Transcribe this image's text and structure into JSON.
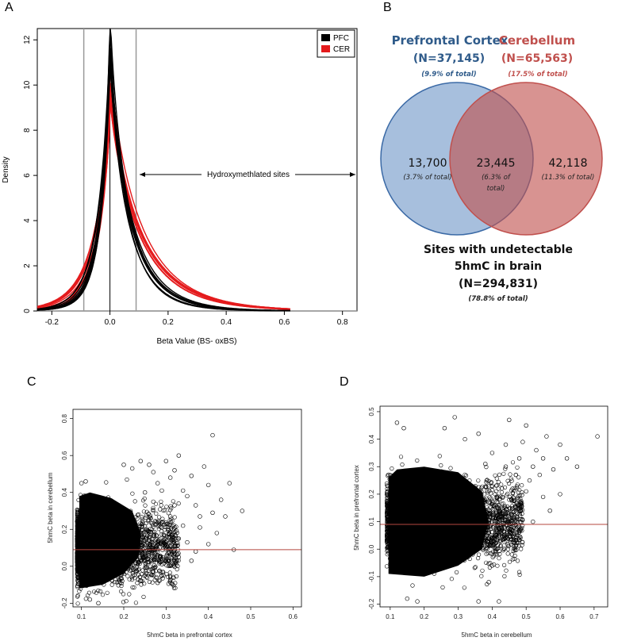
{
  "panels": {
    "a": "A",
    "b": "B",
    "c": "C",
    "d": "D"
  },
  "chart_data": [
    {
      "id": "A",
      "type": "line",
      "xlabel": "Beta Value (BS- oxBS)",
      "ylabel": "Density",
      "xlim": [
        -0.25,
        0.85
      ],
      "ylim": [
        0,
        12.5
      ],
      "x_ticks": [
        "-0.2",
        "0.0",
        "0.2",
        "0.4",
        "0.6",
        "0.8"
      ],
      "y_ticks": [
        "0",
        "2",
        "4",
        "6",
        "8",
        "10",
        "12"
      ],
      "legend": {
        "position": "top-right",
        "entries": [
          {
            "label": "PFC",
            "color": "#000000"
          },
          {
            "label": "CER",
            "color": "#e41a1c"
          }
        ]
      },
      "threshold_lines": [
        -0.09,
        0.09
      ],
      "annotation": "Hydroxymethlated sites",
      "series": [
        {
          "name": "PFC",
          "color": "#000000",
          "peak": 12.2,
          "left_width": 0.035,
          "right_width": 0.06
        },
        {
          "name": "CER",
          "color": "#e41a1c",
          "peak": 9.2,
          "left_width": 0.045,
          "right_width": 0.09
        }
      ]
    },
    {
      "id": "B",
      "type": "venn",
      "sets": [
        {
          "title": "Prefrontal Cortex",
          "count": "(N=37,145)",
          "pct": "(9.9% of total)",
          "color": "#2f5b8a"
        },
        {
          "title": "Cerebellum",
          "count": "(N=65,563)",
          "pct": "(17.5% of total)",
          "color": "#c0504d"
        }
      ],
      "regions": [
        {
          "value": "13,700",
          "note": "(3.7% of total)"
        },
        {
          "value": "23,445",
          "note": "(6.3% of",
          "note2": "total)"
        },
        {
          "value": "42,118",
          "note": "(11.3% of total)"
        }
      ],
      "outside_line1": "Sites with undetectable",
      "outside_line2": "5hmC in brain",
      "outside_count": "(N=294,831)",
      "outside_pct": "(78.8% of total)"
    },
    {
      "id": "C",
      "type": "scatter",
      "xlabel": "5hmC beta in prefrontal cortex",
      "ylabel": "5hmC beta in cerebellum",
      "xlim": [
        0.08,
        0.62
      ],
      "ylim": [
        -0.22,
        0.85
      ],
      "x_ticks": [
        "0.1",
        "0.2",
        "0.3",
        "0.4",
        "0.5",
        "0.6"
      ],
      "y_ticks": [
        "-0.2",
        "0.0",
        "0.2",
        "0.4",
        "0.6",
        "0.8"
      ],
      "threshold": 0.09,
      "points": [
        [
          0.41,
          0.71
        ],
        [
          0.48,
          0.3
        ],
        [
          0.46,
          0.09
        ],
        [
          0.44,
          0.27
        ],
        [
          0.4,
          0.44
        ],
        [
          0.39,
          0.54
        ],
        [
          0.36,
          0.49
        ],
        [
          0.35,
          0.38
        ],
        [
          0.37,
          0.33
        ],
        [
          0.33,
          0.6
        ],
        [
          0.32,
          0.52
        ],
        [
          0.31,
          0.48
        ],
        [
          0.3,
          0.57
        ],
        [
          0.29,
          0.41
        ],
        [
          0.28,
          0.45
        ],
        [
          0.27,
          0.51
        ],
        [
          0.34,
          0.22
        ],
        [
          0.35,
          0.13
        ],
        [
          0.38,
          0.21
        ],
        [
          0.42,
          0.18
        ],
        [
          0.43,
          0.36
        ],
        [
          0.3,
          0.03
        ],
        [
          0.29,
          -0.05
        ],
        [
          0.28,
          -0.09
        ],
        [
          0.26,
          0.55
        ],
        [
          0.24,
          0.57
        ],
        [
          0.22,
          0.53
        ],
        [
          0.2,
          0.55
        ],
        [
          0.31,
          0.27
        ],
        [
          0.33,
          0.15
        ],
        [
          0.4,
          0.12
        ],
        [
          0.45,
          0.45
        ],
        [
          0.36,
          0.03
        ],
        [
          0.12,
          -0.18
        ],
        [
          0.14,
          -0.2
        ],
        [
          0.11,
          0.46
        ],
        [
          0.1,
          0.45
        ],
        [
          0.25,
          0.4
        ],
        [
          0.27,
          0.35
        ],
        [
          0.32,
          0.33
        ],
        [
          0.34,
          0.41
        ],
        [
          0.38,
          0.27
        ],
        [
          0.41,
          0.29
        ],
        [
          0.37,
          0.08
        ],
        [
          0.33,
          0.05
        ]
      ]
    },
    {
      "id": "D",
      "type": "scatter",
      "xlabel": "5hmC beta in cerebellum",
      "ylabel": "5hmC beta in prefrontal cortex",
      "xlim": [
        0.07,
        0.74
      ],
      "ylim": [
        -0.21,
        0.52
      ],
      "x_ticks": [
        "0.1",
        "0.2",
        "0.3",
        "0.4",
        "0.5",
        "0.6",
        "0.7"
      ],
      "y_ticks": [
        "-0.2",
        "-0.1",
        "0.0",
        "0.1",
        "0.2",
        "0.3",
        "0.4",
        "0.5"
      ],
      "threshold": 0.09,
      "points": [
        [
          0.71,
          0.41
        ],
        [
          0.65,
          0.3
        ],
        [
          0.62,
          0.33
        ],
        [
          0.6,
          0.38
        ],
        [
          0.58,
          0.29
        ],
        [
          0.56,
          0.41
        ],
        [
          0.55,
          0.33
        ],
        [
          0.53,
          0.36
        ],
        [
          0.52,
          0.3
        ],
        [
          0.51,
          0.25
        ],
        [
          0.5,
          0.21
        ],
        [
          0.49,
          0.39
        ],
        [
          0.48,
          0.33
        ],
        [
          0.47,
          0.27
        ],
        [
          0.46,
          0.22
        ],
        [
          0.45,
          0.47
        ],
        [
          0.44,
          0.3
        ],
        [
          0.43,
          0.19
        ],
        [
          0.42,
          0.05
        ],
        [
          0.41,
          -0.01
        ],
        [
          0.4,
          -0.06
        ],
        [
          0.39,
          -0.12
        ],
        [
          0.42,
          -0.19
        ],
        [
          0.36,
          -0.19
        ],
        [
          0.29,
          0.48
        ],
        [
          0.26,
          0.44
        ],
        [
          0.12,
          0.46
        ],
        [
          0.14,
          0.44
        ],
        [
          0.52,
          0.1
        ],
        [
          0.48,
          0.04
        ],
        [
          0.45,
          0.09
        ],
        [
          0.55,
          0.19
        ],
        [
          0.57,
          0.14
        ],
        [
          0.6,
          0.2
        ],
        [
          0.36,
          0.42
        ],
        [
          0.32,
          0.4
        ],
        [
          0.15,
          -0.18
        ],
        [
          0.18,
          -0.19
        ],
        [
          0.5,
          0.45
        ],
        [
          0.44,
          0.38
        ],
        [
          0.4,
          0.35
        ],
        [
          0.38,
          0.31
        ],
        [
          0.54,
          0.27
        ],
        [
          0.47,
          0.15
        ],
        [
          0.43,
          0.12
        ]
      ]
    }
  ]
}
